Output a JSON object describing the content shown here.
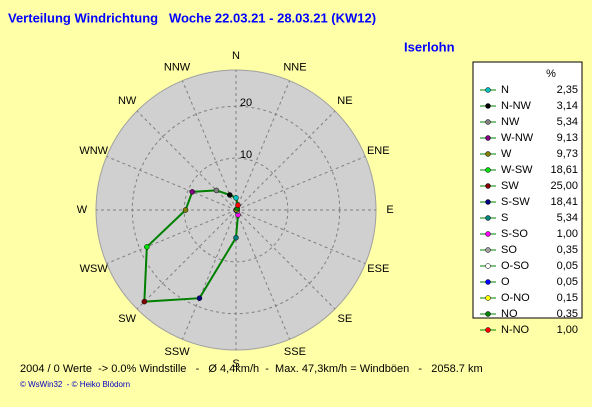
{
  "chart_data": {
    "type": "radar",
    "title": "Verteilung Windrichtung   Woche 22.03.21 - 28.03.21 (KW12)",
    "subtitle": "Iserlohn",
    "axis_labels": [
      "N",
      "NNE",
      "NE",
      "ENE",
      "E",
      "ESE",
      "SE",
      "SSE",
      "S",
      "SSW",
      "SW",
      "WSW",
      "W",
      "WNW",
      "NW",
      "NNW"
    ],
    "rlim": [
      0,
      27
    ],
    "rticks": [
      10,
      20
    ],
    "legend_header": "%",
    "line_color": "#008000",
    "categories": [
      "N",
      "N-NW",
      "NW",
      "W-NW",
      "W",
      "W-SW",
      "SW",
      "S-SW",
      "S",
      "S-SO",
      "SO",
      "O-SO",
      "O",
      "O-NO",
      "NO",
      "N-NO"
    ],
    "values": [
      2.35,
      3.14,
      5.34,
      9.13,
      9.73,
      18.61,
      25.0,
      18.41,
      5.34,
      1.0,
      0.35,
      0.05,
      0.05,
      0.15,
      0.35,
      1.0
    ],
    "value_labels": [
      "2,35",
      "3,14",
      "5,34",
      "9,13",
      "9,73",
      "18,61",
      "25,00",
      "18,41",
      "5,34",
      "1,00",
      "0,35",
      "0,05",
      "0,05",
      "0,15",
      "0,35",
      "1,00"
    ],
    "colors": [
      "#00c0c0",
      "#000000",
      "#808080",
      "#800080",
      "#808000",
      "#00e000",
      "#800000",
      "#000080",
      "#008080",
      "#ff00ff",
      "#a0a0a0",
      "#ffffff",
      "#0000ff",
      "#ffff00",
      "#008000",
      "#ff0000"
    ],
    "footer": "2004 / 0 Werte  -> 0.0% Windstille   -   Ø 4,4km/h  -  Max. 47,3km/h = Windböen   -   2058.7 km",
    "credit": "© WsWin32  - © Heiko Blödorn"
  }
}
